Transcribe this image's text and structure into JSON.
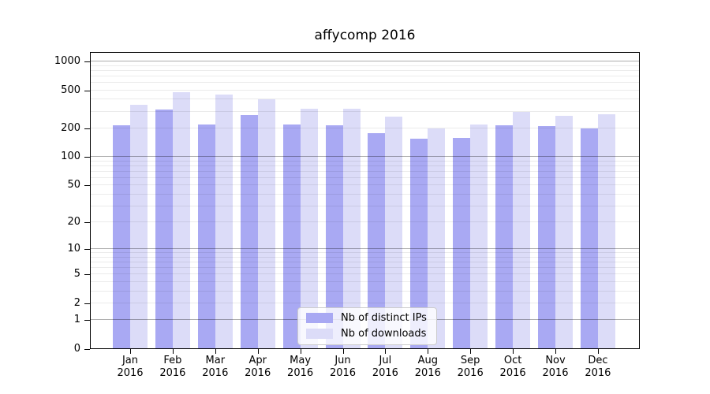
{
  "page": {
    "background": "#ffffff"
  },
  "chart_data": {
    "type": "bar",
    "title": "affycomp 2016",
    "categories": [
      "Jan",
      "Feb",
      "Mar",
      "Apr",
      "May",
      "Jun",
      "Jul",
      "Aug",
      "Sep",
      "Oct",
      "Nov",
      "Dec"
    ],
    "year_label": "2016",
    "series": [
      {
        "name": "Nb of distinct IPs",
        "color": "#a9a9f3",
        "values": [
          210,
          308,
          215,
          268,
          214,
          211,
          174,
          154,
          157,
          211,
          206,
          196
        ]
      },
      {
        "name": "Nb of downloads",
        "color": "#dcdcf8",
        "values": [
          347,
          468,
          443,
          395,
          315,
          316,
          259,
          196,
          215,
          290,
          264,
          275
        ]
      }
    ],
    "y_axis": {
      "scale": "log1p",
      "range": [
        0,
        1000
      ],
      "ticks": [
        0,
        1,
        2,
        5,
        10,
        20,
        50,
        100,
        200,
        500,
        1000
      ],
      "decade_gridlines": [
        1,
        10,
        100,
        1000
      ],
      "minor_gridlines": [
        2,
        3,
        4,
        5,
        6,
        7,
        8,
        9,
        20,
        30,
        40,
        50,
        60,
        70,
        80,
        90,
        200,
        300,
        400,
        500,
        600,
        700,
        800,
        900
      ]
    },
    "grid": true,
    "legend_position": "lower center",
    "colors": {
      "frame": "#000000",
      "text": "#000000",
      "major_grid": "rgba(0,0,0,0.32)",
      "minor_grid": "rgba(0,0,0,0.08)"
    }
  }
}
